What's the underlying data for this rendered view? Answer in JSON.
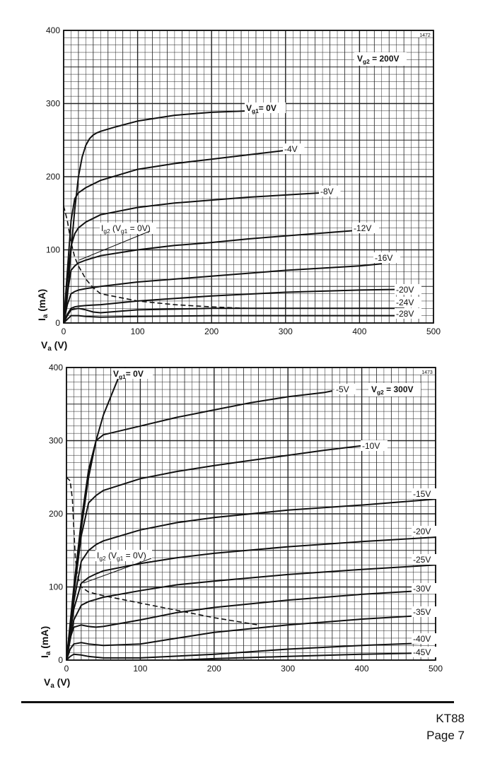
{
  "chart_data": [
    {
      "type": "line",
      "code": "1472",
      "condition": "V",
      "condition_sub": "g2",
      "condition_value": "= 200V",
      "xlabel": "V",
      "xlabel_sub": "a",
      "xlabel_unit": "(V)",
      "ylabel": "I",
      "ylabel_sub": "a",
      "ylabel_unit": "(mA)",
      "xlim": [
        0,
        500
      ],
      "ylim": [
        0,
        400
      ],
      "x_ticks": [
        "0",
        "100",
        "200",
        "300",
        "400",
        "500"
      ],
      "y_ticks": [
        "0",
        "100",
        "200",
        "300",
        "400"
      ],
      "grid": true,
      "series": [
        {
          "name": "0V",
          "label_prefix": "V",
          "label_sub": "g1",
          "label_suffix": "= 0V",
          "x": [
            0,
            5,
            10,
            15,
            20,
            25,
            30,
            35,
            40,
            45,
            50,
            70,
            100,
            150,
            200,
            250
          ],
          "y": [
            0,
            35,
            100,
            155,
            200,
            227,
            243,
            252,
            257,
            260,
            262,
            268,
            276,
            284,
            288,
            290
          ]
        },
        {
          "name": "-4V",
          "label": "-4V",
          "x": [
            0,
            5,
            10,
            15,
            20,
            30,
            50,
            100,
            150,
            200,
            250,
            300
          ],
          "y": [
            0,
            70,
            140,
            170,
            178,
            185,
            195,
            210,
            218,
            224,
            230,
            236
          ]
        },
        {
          "name": "-8V",
          "label": "-8V",
          "x": [
            0,
            5,
            10,
            15,
            20,
            30,
            50,
            100,
            150,
            200,
            250,
            300,
            350
          ],
          "y": [
            0,
            60,
            105,
            122,
            130,
            138,
            148,
            158,
            164,
            168,
            172,
            175,
            178
          ]
        },
        {
          "name": "-12V",
          "label": "-12V",
          "x": [
            0,
            5,
            10,
            15,
            20,
            30,
            50,
            100,
            150,
            200,
            250,
            300,
            350,
            400
          ],
          "y": [
            0,
            40,
            72,
            78,
            82,
            86,
            92,
            100,
            106,
            110,
            115,
            119,
            123,
            127
          ]
        },
        {
          "name": "-16V",
          "label": "-16V",
          "x": [
            0,
            5,
            10,
            15,
            20,
            30,
            50,
            100,
            200,
            300,
            400,
            430
          ],
          "y": [
            0,
            25,
            40,
            43,
            45,
            47,
            50,
            56,
            64,
            72,
            78,
            81
          ]
        },
        {
          "name": "-20V",
          "label": "-20V",
          "x": [
            0,
            5,
            10,
            15,
            20,
            30,
            50,
            100,
            200,
            300,
            400,
            460
          ],
          "y": [
            0,
            12,
            20,
            22,
            23,
            24,
            25,
            30,
            37,
            42,
            45,
            46
          ]
        },
        {
          "name": "-24V",
          "label": "-24V",
          "x": [
            0,
            5,
            10,
            20,
            30,
            40,
            50,
            100,
            200,
            300,
            400,
            460
          ],
          "y": [
            0,
            10,
            18,
            20,
            18,
            15,
            14,
            18,
            20,
            20,
            20,
            20
          ]
        },
        {
          "name": "-28V",
          "label": "-28V",
          "x": [
            0,
            5,
            10,
            20,
            30,
            50,
            100,
            200,
            300,
            400,
            460
          ],
          "y": [
            0,
            5,
            10,
            10,
            9,
            8,
            9,
            10,
            10,
            10,
            10
          ]
        },
        {
          "name": "Ig2 (Vg1 = 0V)",
          "dashed": true,
          "label_prefix": "I",
          "label_sub": "g2",
          "label_suffix": " (V",
          "label_sub2": "g1",
          "label_suffix2": " = 0V)",
          "x": [
            0,
            5,
            10,
            15,
            20,
            30,
            40,
            50,
            100,
            150,
            200,
            250
          ],
          "y": [
            160,
            140,
            110,
            90,
            78,
            60,
            48,
            40,
            30,
            25,
            22,
            20
          ]
        }
      ]
    },
    {
      "type": "line",
      "code": "1473",
      "condition": "V",
      "condition_sub": "g2",
      "condition_value": "= 300V",
      "xlabel": "V",
      "xlabel_sub": "a",
      "xlabel_unit": "(V)",
      "ylabel": "I",
      "ylabel_sub": "a",
      "ylabel_unit": "(mA)",
      "xlim": [
        0,
        500
      ],
      "ylim": [
        0,
        400
      ],
      "x_ticks": [
        "0",
        "100",
        "200",
        "300",
        "400",
        "500"
      ],
      "y_ticks": [
        "0",
        "100",
        "200",
        "300",
        "400"
      ],
      "grid": true,
      "series": [
        {
          "name": "0V",
          "label_prefix": "V",
          "label_sub": "g1",
          "label_suffix": "= 0V",
          "x": [
            0,
            5,
            10,
            15,
            20,
            30,
            40,
            50,
            60,
            70,
            80
          ],
          "y": [
            0,
            45,
            95,
            140,
            180,
            250,
            300,
            335,
            360,
            385,
            400
          ]
        },
        {
          "name": "-5V",
          "label": "-5V",
          "x": [
            0,
            10,
            20,
            30,
            40,
            50,
            100,
            150,
            200,
            250,
            300,
            350,
            360
          ],
          "y": [
            0,
            100,
            190,
            260,
            300,
            308,
            320,
            332,
            342,
            352,
            360,
            366,
            368
          ]
        },
        {
          "name": "-10V",
          "label": "-10V",
          "x": [
            0,
            10,
            20,
            30,
            40,
            50,
            100,
            150,
            200,
            250,
            300,
            350,
            400
          ],
          "y": [
            0,
            90,
            170,
            215,
            225,
            232,
            248,
            258,
            266,
            273,
            280,
            287,
            293
          ]
        },
        {
          "name": "-15V",
          "label": "-15V",
          "x": [
            0,
            10,
            20,
            30,
            40,
            50,
            100,
            150,
            200,
            300,
            400,
            500
          ],
          "y": [
            0,
            80,
            135,
            150,
            158,
            163,
            178,
            188,
            195,
            205,
            212,
            220
          ]
        },
        {
          "name": "-20V",
          "label": "-20V",
          "x": [
            0,
            10,
            20,
            30,
            40,
            50,
            100,
            150,
            200,
            300,
            400,
            500
          ],
          "y": [
            0,
            70,
            105,
            113,
            118,
            122,
            132,
            140,
            146,
            155,
            162,
            168
          ]
        },
        {
          "name": "-25V",
          "label": "-25V",
          "x": [
            0,
            10,
            20,
            30,
            40,
            50,
            100,
            150,
            200,
            300,
            400,
            500
          ],
          "y": [
            0,
            55,
            75,
            80,
            83,
            86,
            95,
            103,
            108,
            117,
            124,
            130
          ]
        },
        {
          "name": "-30V",
          "label": "-30V",
          "x": [
            0,
            5,
            10,
            20,
            30,
            40,
            50,
            100,
            150,
            200,
            300,
            400,
            500
          ],
          "y": [
            0,
            30,
            45,
            48,
            46,
            45,
            46,
            55,
            65,
            72,
            82,
            90,
            96
          ]
        },
        {
          "name": "-35V",
          "label": "-35V",
          "x": [
            0,
            5,
            10,
            20,
            30,
            50,
            100,
            150,
            200,
            300,
            400,
            500
          ],
          "y": [
            0,
            15,
            22,
            24,
            22,
            20,
            22,
            30,
            38,
            48,
            56,
            62
          ]
        },
        {
          "name": "-40V",
          "label": "-40V",
          "x": [
            0,
            5,
            10,
            20,
            30,
            50,
            100,
            200,
            300,
            400,
            500
          ],
          "y": [
            0,
            5,
            8,
            7,
            5,
            3,
            3,
            8,
            15,
            20,
            24
          ]
        },
        {
          "name": "-45V",
          "label": "-45V",
          "x": [
            150,
            200,
            300,
            400,
            500
          ],
          "y": [
            0,
            2,
            5,
            8,
            10
          ]
        },
        {
          "name": "Ig2 (Vg1 = 0V)",
          "dashed": true,
          "label_prefix": "I",
          "label_sub": "g2",
          "label_suffix": " (V",
          "label_sub2": "g1",
          "label_suffix2": " = 0V)",
          "x": [
            0,
            5,
            8,
            10,
            12,
            15,
            20,
            30,
            50,
            100,
            150,
            200,
            260
          ],
          "y": [
            250,
            245,
            220,
            180,
            140,
            115,
            100,
            93,
            88,
            78,
            68,
            58,
            48
          ]
        }
      ]
    }
  ],
  "footer": {
    "doc": "KT88",
    "page": "Page 7"
  }
}
